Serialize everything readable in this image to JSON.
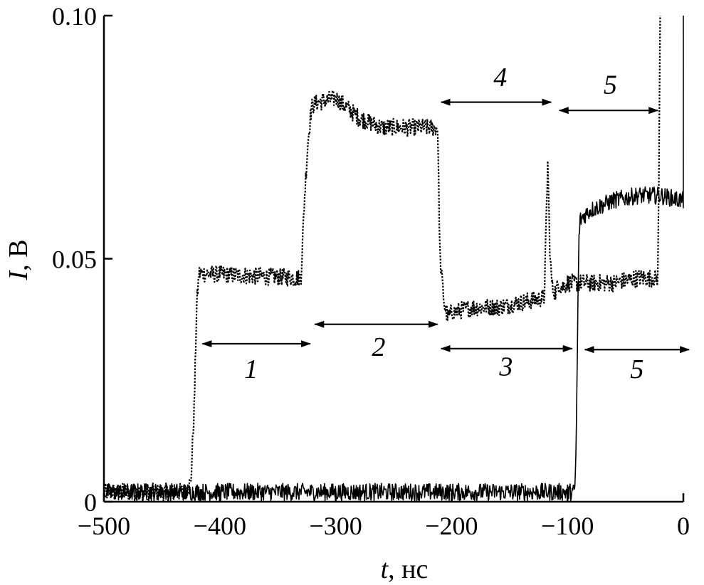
{
  "chart_data": {
    "type": "line",
    "title": "",
    "xlabel_var": "t",
    "xlabel_unit": ", нс",
    "ylabel_var": "I",
    "ylabel_unit": ", В",
    "xlim": [
      -500,
      0
    ],
    "ylim": [
      0,
      0.1
    ],
    "grid": false,
    "legend": "none",
    "x_ticks": [
      {
        "value": -500,
        "label": "−500"
      },
      {
        "value": -400,
        "label": "−400"
      },
      {
        "value": -300,
        "label": "−300"
      },
      {
        "value": -200,
        "label": "−200"
      },
      {
        "value": -100,
        "label": "−100"
      },
      {
        "value": 0,
        "label": "0"
      }
    ],
    "y_ticks": [
      {
        "value": 0,
        "label": "0"
      },
      {
        "value": 0.05,
        "label": "0.05"
      },
      {
        "value": 0.1,
        "label": "0.10"
      }
    ],
    "series": [
      {
        "style": "dotted",
        "noise": 0.0018,
        "x": [
          -500,
          -430,
          -425,
          -422,
          -420,
          -418,
          -330,
          -327,
          -324,
          -321,
          -318,
          -300,
          -280,
          -260,
          -240,
          -212,
          -210,
          -206,
          -203,
          -200,
          -180,
          -160,
          -140,
          -120,
          -117,
          -115,
          -113,
          -110,
          -108,
          -105,
          -100,
          -80,
          -60,
          -40,
          -22,
          -21,
          -20
        ],
        "y": [
          0.002,
          0.002,
          0.004,
          0.02,
          0.04,
          0.047,
          0.046,
          0.062,
          0.074,
          0.081,
          0.082,
          0.083,
          0.079,
          0.077,
          0.077,
          0.077,
          0.05,
          0.04,
          0.038,
          0.039,
          0.04,
          0.04,
          0.041,
          0.042,
          0.07,
          0.05,
          0.044,
          0.043,
          0.045,
          0.044,
          0.045,
          0.045,
          0.045,
          0.046,
          0.046,
          0.07,
          0.1
        ]
      },
      {
        "style": "solid",
        "noise": 0.0018,
        "x": [
          -500,
          -300,
          -200,
          -100,
          -94,
          -93,
          -92,
          -91,
          -90,
          -89,
          -85,
          -80,
          -60,
          -40,
          -20,
          -1,
          0,
          0
        ],
        "y": [
          0.002,
          0.002,
          0.002,
          0.002,
          0.002,
          0.006,
          0.02,
          0.04,
          0.055,
          0.058,
          0.059,
          0.06,
          0.062,
          0.063,
          0.063,
          0.062,
          0.062,
          0.1
        ]
      }
    ],
    "annotations": [
      {
        "label": "1",
        "x_start": -415,
        "x_end": -322,
        "y": 0.0325,
        "label_x": -373,
        "label_y": 0.0255
      },
      {
        "label": "2",
        "x_start": -318,
        "x_end": -212,
        "y": 0.0365,
        "label_x": -263,
        "label_y": 0.03
      },
      {
        "label": "3",
        "x_start": -209,
        "x_end": -96,
        "y": 0.0315,
        "label_x": -153,
        "label_y": 0.026
      },
      {
        "label": "4",
        "x_start": -209,
        "x_end": -114,
        "y": 0.0822,
        "label_x": -158,
        "label_y": 0.0855
      },
      {
        "label": "5",
        "x_start": -107,
        "x_end": -22,
        "y": 0.0805,
        "label_x": -63,
        "label_y": 0.084
      },
      {
        "label": "5",
        "x_start": -85,
        "x_end": 5,
        "y": 0.0313,
        "label_x": -40,
        "label_y": 0.0255
      }
    ]
  }
}
